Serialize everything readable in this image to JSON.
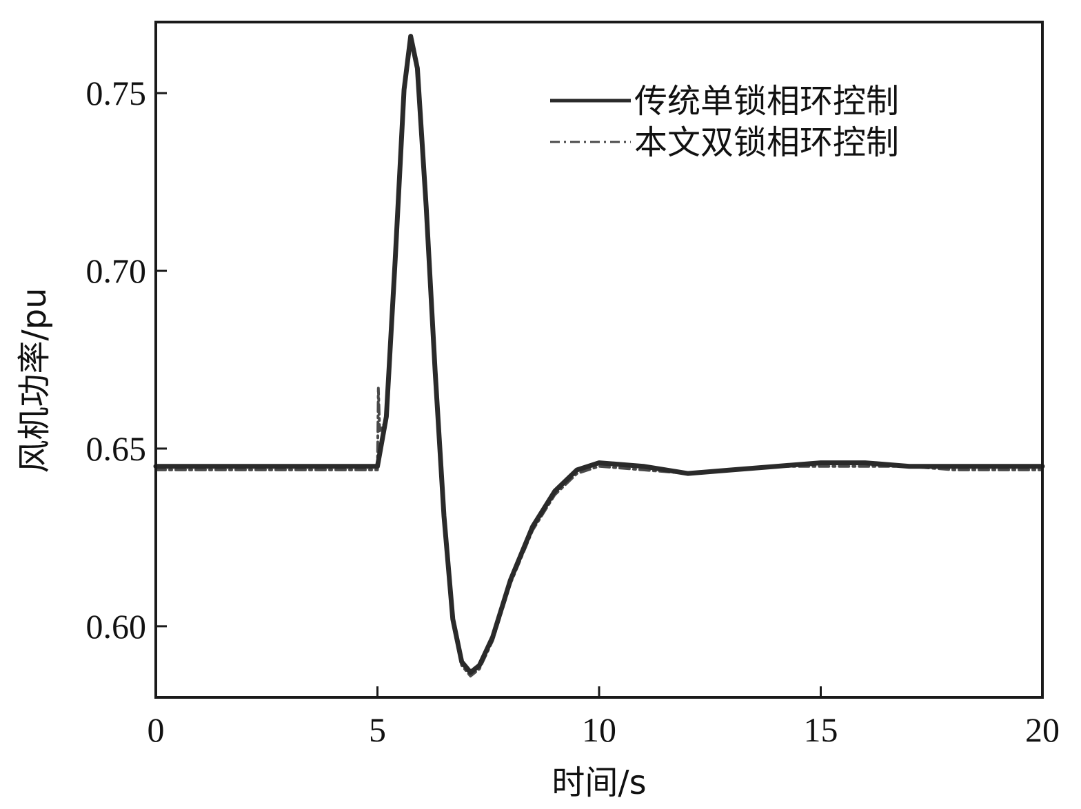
{
  "chart_data": {
    "type": "line",
    "xlabel": "时间/s",
    "ylabel": "风机功率/pu",
    "xlim": [
      0,
      20
    ],
    "ylim": [
      0.58,
      0.77
    ],
    "xticks": [
      0,
      5,
      10,
      15,
      20
    ],
    "xtick_labels": [
      "0",
      "5",
      "10",
      "15",
      "20"
    ],
    "yticks": [
      0.6,
      0.65,
      0.7,
      0.75
    ],
    "ytick_labels": [
      "0.60",
      "0.65",
      "0.70",
      "0.75"
    ],
    "grid": false,
    "legend_position": "top-right",
    "series": [
      {
        "name": "传统单锁相环控制",
        "style": "solid",
        "color": "#2a2a2a",
        "points": [
          [
            0,
            0.645
          ],
          [
            5.0,
            0.645
          ],
          [
            5.2,
            0.659
          ],
          [
            5.4,
            0.703
          ],
          [
            5.6,
            0.751
          ],
          [
            5.75,
            0.766
          ],
          [
            5.9,
            0.757
          ],
          [
            6.1,
            0.718
          ],
          [
            6.3,
            0.672
          ],
          [
            6.5,
            0.631
          ],
          [
            6.7,
            0.602
          ],
          [
            6.9,
            0.59
          ],
          [
            7.1,
            0.587
          ],
          [
            7.3,
            0.589
          ],
          [
            7.6,
            0.597
          ],
          [
            8.0,
            0.613
          ],
          [
            8.5,
            0.628
          ],
          [
            9.0,
            0.638
          ],
          [
            9.5,
            0.644
          ],
          [
            10.0,
            0.646
          ],
          [
            11.0,
            0.645
          ],
          [
            12.0,
            0.643
          ],
          [
            13.0,
            0.644
          ],
          [
            14.0,
            0.645
          ],
          [
            15.0,
            0.646
          ],
          [
            16.0,
            0.646
          ],
          [
            17.0,
            0.645
          ],
          [
            18.0,
            0.645
          ],
          [
            19.0,
            0.645
          ],
          [
            20.0,
            0.645
          ]
        ]
      },
      {
        "name": "本文双锁相环控制",
        "style": "dash-dot",
        "color": "#4a4a4a",
        "points": [
          [
            0,
            0.644
          ],
          [
            5.0,
            0.644
          ],
          [
            5.02,
            0.667
          ],
          [
            5.05,
            0.655
          ],
          [
            5.2,
            0.658
          ],
          [
            5.4,
            0.702
          ],
          [
            5.6,
            0.75
          ],
          [
            5.75,
            0.765
          ],
          [
            5.9,
            0.756
          ],
          [
            6.1,
            0.717
          ],
          [
            6.3,
            0.671
          ],
          [
            6.5,
            0.63
          ],
          [
            6.7,
            0.601
          ],
          [
            6.9,
            0.589
          ],
          [
            7.1,
            0.586
          ],
          [
            7.3,
            0.588
          ],
          [
            7.6,
            0.596
          ],
          [
            8.0,
            0.612
          ],
          [
            8.5,
            0.627
          ],
          [
            9.0,
            0.637
          ],
          [
            9.5,
            0.643
          ],
          [
            10.0,
            0.645
          ],
          [
            11.0,
            0.644
          ],
          [
            12.0,
            0.643
          ],
          [
            13.0,
            0.644
          ],
          [
            14.0,
            0.645
          ],
          [
            15.0,
            0.645
          ],
          [
            16.0,
            0.645
          ],
          [
            17.0,
            0.645
          ],
          [
            18.0,
            0.644
          ],
          [
            19.0,
            0.644
          ],
          [
            20.0,
            0.644
          ]
        ]
      }
    ]
  }
}
